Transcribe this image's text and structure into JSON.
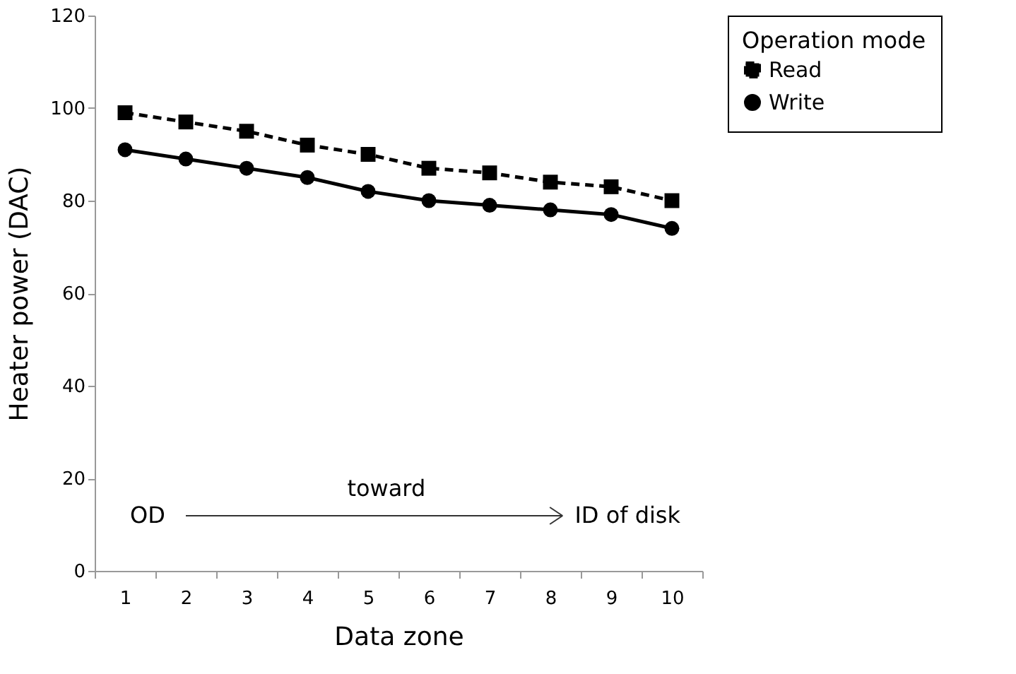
{
  "chart_data": {
    "type": "line",
    "xlabel": "Data zone",
    "ylabel": "Heater power (DAC)",
    "legend_title": "Operation mode",
    "legend": "right",
    "grid": false,
    "categories": [
      "1",
      "2",
      "3",
      "4",
      "5",
      "6",
      "7",
      "8",
      "9",
      "10"
    ],
    "series": [
      {
        "name": "Read",
        "color": "#000000",
        "marker": "square",
        "line_style": "dashed",
        "values": [
          99,
          97,
          95,
          92,
          90,
          87,
          86,
          84,
          83,
          80
        ]
      },
      {
        "name": "Write",
        "color": "#000000",
        "marker": "circle",
        "line_style": "solid",
        "values": [
          91,
          89,
          87,
          85,
          82,
          80,
          79,
          78,
          77,
          74
        ]
      }
    ],
    "ylim": [
      0,
      120
    ],
    "yticks": [
      0,
      20,
      40,
      60,
      80,
      100,
      120
    ],
    "annotations": [
      "OD",
      "toward",
      "ID of disk"
    ]
  }
}
